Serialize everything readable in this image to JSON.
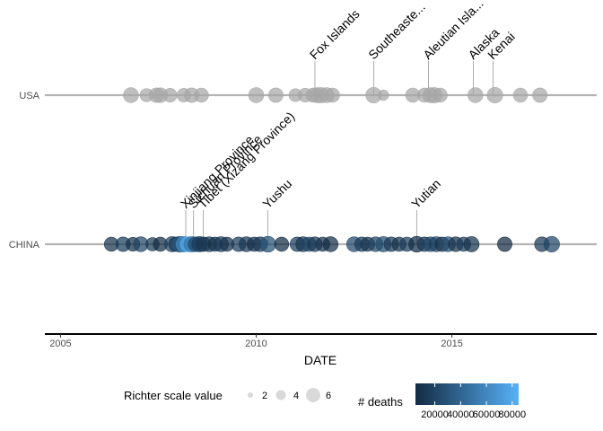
{
  "chart_data": {
    "type": "scatter",
    "xlabel": "DATE",
    "ylabel": "",
    "xlim": [
      2004.6,
      2018.7
    ],
    "x_ticks": [
      "2005",
      "2010",
      "2015"
    ],
    "categories": [
      "USA",
      "CHINA"
    ],
    "grid": false,
    "colors": {
      "timeline": "#b3b3b3",
      "usa_point": "#a6a6a6",
      "grad_low": "#132b43",
      "grad_high": "#56b1f7",
      "axis": "#000000",
      "stem": "#999999"
    },
    "series": [
      {
        "category": "USA",
        "points": [
          {
            "x": 2006.8,
            "mag": 6.5
          },
          {
            "x": 2007.2,
            "mag": 5.5
          },
          {
            "x": 2007.45,
            "mag": 6.2
          },
          {
            "x": 2007.55,
            "mag": 6.3
          },
          {
            "x": 2007.8,
            "mag": 5.8
          },
          {
            "x": 2008.15,
            "mag": 5.7
          },
          {
            "x": 2008.35,
            "mag": 6.2
          },
          {
            "x": 2008.6,
            "mag": 6.0
          },
          {
            "x": 2010.0,
            "mag": 6.5
          },
          {
            "x": 2010.5,
            "mag": 6.2
          },
          {
            "x": 2011.0,
            "mag": 5.3
          },
          {
            "x": 2011.25,
            "mag": 5.8
          },
          {
            "x": 2011.45,
            "mag": 6.0
          },
          {
            "x": 2011.55,
            "mag": 6.5
          },
          {
            "x": 2011.65,
            "mag": 6.7
          },
          {
            "x": 2011.8,
            "mag": 6.5
          },
          {
            "x": 2011.95,
            "mag": 6.0
          },
          {
            "x": 2013.0,
            "mag": 6.8
          },
          {
            "x": 2013.25,
            "mag": 4.0
          },
          {
            "x": 2014.0,
            "mag": 6.1
          },
          {
            "x": 2014.3,
            "mag": 6.0
          },
          {
            "x": 2014.45,
            "mag": 6.5
          },
          {
            "x": 2014.55,
            "mag": 6.7
          },
          {
            "x": 2014.7,
            "mag": 6.0
          },
          {
            "x": 2015.6,
            "mag": 6.5
          },
          {
            "x": 2016.1,
            "mag": 6.8
          },
          {
            "x": 2016.75,
            "mag": 6.0
          },
          {
            "x": 2017.25,
            "mag": 6.2
          }
        ]
      },
      {
        "category": "CHINA",
        "points": [
          {
            "x": 2006.3,
            "mag": 6.0,
            "deaths": 10000
          },
          {
            "x": 2006.6,
            "mag": 6.2,
            "deaths": 15000
          },
          {
            "x": 2006.85,
            "mag": 5.8,
            "deaths": 8000
          },
          {
            "x": 2007.05,
            "mag": 6.4,
            "deaths": 20000
          },
          {
            "x": 2007.35,
            "mag": 5.6,
            "deaths": 12000
          },
          {
            "x": 2007.55,
            "mag": 6.0,
            "deaths": 5000
          },
          {
            "x": 2007.85,
            "mag": 6.6,
            "deaths": 18000
          },
          {
            "x": 2007.95,
            "mag": 6.2,
            "deaths": 10000
          },
          {
            "x": 2008.05,
            "mag": 6.9,
            "deaths": 30000
          },
          {
            "x": 2008.15,
            "mag": 6.8,
            "deaths": 60000
          },
          {
            "x": 2008.25,
            "mag": 6.5,
            "deaths": 80000
          },
          {
            "x": 2008.35,
            "mag": 6.7,
            "deaths": 50000
          },
          {
            "x": 2008.45,
            "mag": 6.3,
            "deaths": 20000
          },
          {
            "x": 2008.55,
            "mag": 6.6,
            "deaths": 15000
          },
          {
            "x": 2008.65,
            "mag": 6.2,
            "deaths": 10000
          },
          {
            "x": 2008.8,
            "mag": 6.4,
            "deaths": 12000
          },
          {
            "x": 2008.95,
            "mag": 6.0,
            "deaths": 8000
          },
          {
            "x": 2009.1,
            "mag": 6.5,
            "deaths": 14000
          },
          {
            "x": 2009.25,
            "mag": 6.0,
            "deaths": 9000
          },
          {
            "x": 2009.55,
            "mag": 6.2,
            "deaths": 16000
          },
          {
            "x": 2009.75,
            "mag": 6.4,
            "deaths": 11000
          },
          {
            "x": 2009.95,
            "mag": 6.1,
            "deaths": 7000
          },
          {
            "x": 2010.1,
            "mag": 6.3,
            "deaths": 13000
          },
          {
            "x": 2010.3,
            "mag": 6.9,
            "deaths": 25000
          },
          {
            "x": 2010.65,
            "mag": 6.0,
            "deaths": 5000
          },
          {
            "x": 2011.05,
            "mag": 6.2,
            "deaths": 15000
          },
          {
            "x": 2011.2,
            "mag": 6.4,
            "deaths": 10000
          },
          {
            "x": 2011.35,
            "mag": 6.1,
            "deaths": 20000
          },
          {
            "x": 2011.5,
            "mag": 6.3,
            "deaths": 12000
          },
          {
            "x": 2011.7,
            "mag": 6.0,
            "deaths": 9000
          },
          {
            "x": 2011.9,
            "mag": 6.5,
            "deaths": 6000
          },
          {
            "x": 2012.5,
            "mag": 6.4,
            "deaths": 22000
          },
          {
            "x": 2012.7,
            "mag": 6.2,
            "deaths": 14000
          },
          {
            "x": 2012.85,
            "mag": 6.0,
            "deaths": 10000
          },
          {
            "x": 2013.05,
            "mag": 6.3,
            "deaths": 18000
          },
          {
            "x": 2013.25,
            "mag": 6.6,
            "deaths": 24000
          },
          {
            "x": 2013.45,
            "mag": 6.2,
            "deaths": 12000
          },
          {
            "x": 2013.65,
            "mag": 6.0,
            "deaths": 9000
          },
          {
            "x": 2013.85,
            "mag": 6.1,
            "deaths": 16000
          },
          {
            "x": 2014.1,
            "mag": 6.9,
            "deaths": 5000
          },
          {
            "x": 2014.3,
            "mag": 6.2,
            "deaths": 13000
          },
          {
            "x": 2014.45,
            "mag": 6.3,
            "deaths": 20000
          },
          {
            "x": 2014.6,
            "mag": 6.5,
            "deaths": 18000
          },
          {
            "x": 2014.75,
            "mag": 6.2,
            "deaths": 10000
          },
          {
            "x": 2014.9,
            "mag": 6.4,
            "deaths": 25000
          },
          {
            "x": 2015.1,
            "mag": 6.3,
            "deaths": 8000
          },
          {
            "x": 2015.3,
            "mag": 6.0,
            "deaths": 14000
          },
          {
            "x": 2015.5,
            "mag": 6.6,
            "deaths": 9000
          },
          {
            "x": 2016.35,
            "mag": 6.2,
            "deaths": 5000
          },
          {
            "x": 2017.3,
            "mag": 6.3,
            "deaths": 12000
          },
          {
            "x": 2017.55,
            "mag": 6.8,
            "deaths": 20000
          }
        ]
      }
    ],
    "annotations": [
      {
        "label": "Fox Islands",
        "x": 2011.5,
        "category": "USA"
      },
      {
        "label": "Southeaste...",
        "x": 2013.0,
        "category": "USA"
      },
      {
        "label": "Aleutian Isla...",
        "x": 2014.4,
        "category": "USA"
      },
      {
        "label": "Alaska",
        "x": 2015.55,
        "category": "USA"
      },
      {
        "label": "Kenai",
        "x": 2016.05,
        "category": "USA"
      },
      {
        "label": "Xinjiang Province",
        "x": 2008.2,
        "category": "CHINA"
      },
      {
        "label": "Sichuan Province",
        "x": 2008.4,
        "category": "CHINA"
      },
      {
        "label": "Tibet (Xizang Province)",
        "x": 2008.65,
        "category": "CHINA"
      },
      {
        "label": "Yushu",
        "x": 2010.3,
        "category": "CHINA"
      },
      {
        "label": "Yutian",
        "x": 2014.1,
        "category": "CHINA"
      }
    ],
    "legend": {
      "placement": "bottom",
      "size_title": "Richter scale value",
      "size_values": [
        "2",
        "4",
        "6"
      ],
      "color_title": "# deaths",
      "color_values": [
        "20000",
        "40000",
        "60000",
        "80000"
      ],
      "color_range": [
        5000,
        85000
      ]
    }
  }
}
